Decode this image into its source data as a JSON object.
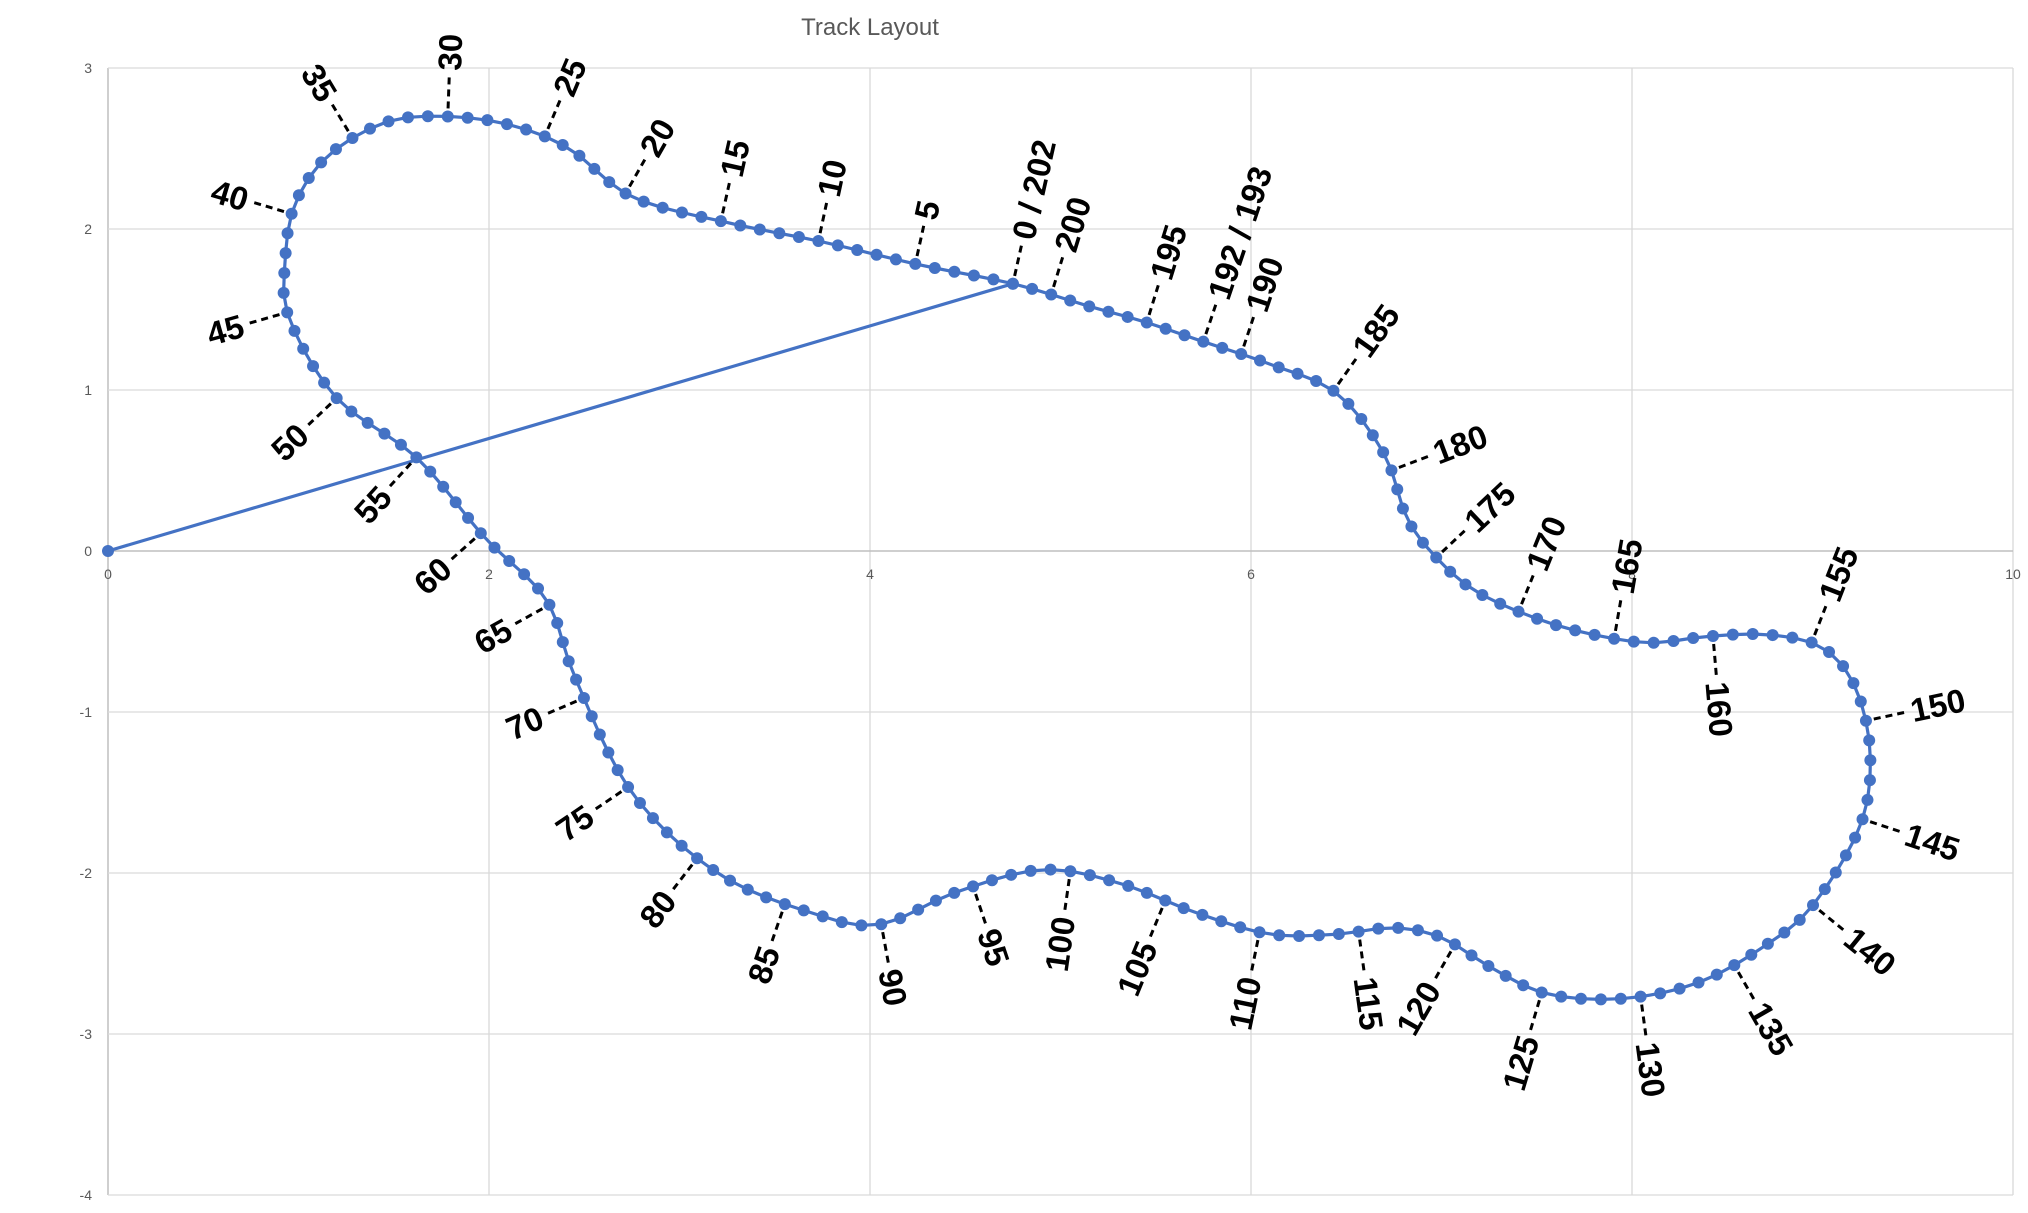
{
  "chart_data": {
    "type": "scatter",
    "title": "Track Layout",
    "xlabel": "",
    "ylabel": "",
    "xlim": [
      0,
      10
    ],
    "ylim": [
      -4,
      3
    ],
    "grid": true,
    "x_ticks": [
      "0",
      "2",
      "4",
      "6",
      "8",
      "10"
    ],
    "y_ticks": [
      "3",
      "2",
      "1",
      "0",
      "-1",
      "-2",
      "-3",
      "-4"
    ],
    "series_color": "#4472c4",
    "origin": [
      0,
      0
    ],
    "anchors": [
      [
        4.75,
        1.66
      ],
      [
        4.25,
        1.78
      ],
      [
        3.75,
        1.92
      ],
      [
        3.25,
        2.04
      ],
      [
        2.75,
        2.2
      ],
      [
        2.42,
        2.5
      ],
      [
        2.1,
        2.65
      ],
      [
        1.75,
        2.7
      ],
      [
        1.45,
        2.66
      ],
      [
        1.15,
        2.45
      ],
      [
        0.98,
        2.15
      ],
      [
        0.93,
        1.8
      ],
      [
        0.95,
        1.45
      ],
      [
        1.2,
        0.95
      ],
      [
        1.62,
        0.58
      ],
      [
        1.98,
        0.08
      ],
      [
        2.3,
        -0.3
      ],
      [
        2.45,
        -0.78
      ],
      [
        2.75,
        -1.5
      ],
      [
        3.2,
        -2.0
      ],
      [
        3.7,
        -2.25
      ],
      [
        4.05,
        -2.32
      ],
      [
        4.45,
        -2.12
      ],
      [
        4.9,
        -1.98
      ],
      [
        5.3,
        -2.06
      ],
      [
        5.72,
        -2.25
      ],
      [
        6.1,
        -2.38
      ],
      [
        6.45,
        -2.38
      ],
      [
        6.75,
        -2.34
      ],
      [
        7.0,
        -2.4
      ],
      [
        7.25,
        -2.58
      ],
      [
        7.55,
        -2.75
      ],
      [
        7.95,
        -2.78
      ],
      [
        8.35,
        -2.68
      ],
      [
        8.7,
        -2.45
      ],
      [
        8.95,
        -2.2
      ],
      [
        9.2,
        -1.7
      ],
      [
        9.25,
        -1.25
      ],
      [
        9.17,
        -0.84
      ],
      [
        9.0,
        -0.6
      ],
      [
        8.72,
        -0.52
      ],
      [
        8.4,
        -0.53
      ],
      [
        8.1,
        -0.57
      ],
      [
        7.8,
        -0.52
      ],
      [
        7.5,
        -0.42
      ],
      [
        7.18,
        -0.25
      ],
      [
        6.98,
        -0.05
      ],
      [
        6.82,
        0.2
      ],
      [
        6.7,
        0.6
      ],
      [
        6.45,
        0.98
      ],
      [
        6.1,
        1.16
      ],
      [
        5.75,
        1.3
      ],
      [
        5.45,
        1.42
      ],
      [
        5.15,
        1.52
      ],
      [
        4.75,
        1.66
      ]
    ],
    "point_count": 203,
    "point_labels": [
      {
        "text": "0 / 202",
        "index": 0
      },
      {
        "text": "5",
        "index": 5
      },
      {
        "text": "10",
        "index": 10
      },
      {
        "text": "15",
        "index": 15
      },
      {
        "text": "20",
        "index": 20
      },
      {
        "text": "25",
        "index": 25
      },
      {
        "text": "30",
        "index": 30
      },
      {
        "text": "35",
        "index": 35
      },
      {
        "text": "40",
        "index": 40
      },
      {
        "text": "45",
        "index": 45
      },
      {
        "text": "50",
        "index": 50
      },
      {
        "text": "55",
        "index": 55
      },
      {
        "text": "60",
        "index": 60
      },
      {
        "text": "65",
        "index": 65
      },
      {
        "text": "70",
        "index": 70
      },
      {
        "text": "75",
        "index": 75
      },
      {
        "text": "80",
        "index": 80
      },
      {
        "text": "85",
        "index": 85
      },
      {
        "text": "90",
        "index": 90
      },
      {
        "text": "95",
        "index": 95
      },
      {
        "text": "100",
        "index": 100
      },
      {
        "text": "105",
        "index": 105
      },
      {
        "text": "110",
        "index": 110
      },
      {
        "text": "115",
        "index": 115
      },
      {
        "text": "120",
        "index": 120
      },
      {
        "text": "125",
        "index": 125
      },
      {
        "text": "130",
        "index": 130
      },
      {
        "text": "135",
        "index": 135
      },
      {
        "text": "140",
        "index": 140
      },
      {
        "text": "145",
        "index": 145
      },
      {
        "text": "150",
        "index": 150
      },
      {
        "text": "155",
        "index": 155
      },
      {
        "text": "160",
        "index": 160
      },
      {
        "text": "165",
        "index": 165
      },
      {
        "text": "170",
        "index": 170
      },
      {
        "text": "175",
        "index": 175
      },
      {
        "text": "180",
        "index": 180
      },
      {
        "text": "185",
        "index": 185
      },
      {
        "text": "190",
        "index": 190
      },
      {
        "text": "192 / 193",
        "index": 192
      },
      {
        "text": "195",
        "index": 195
      },
      {
        "text": "200",
        "index": 200
      }
    ]
  }
}
